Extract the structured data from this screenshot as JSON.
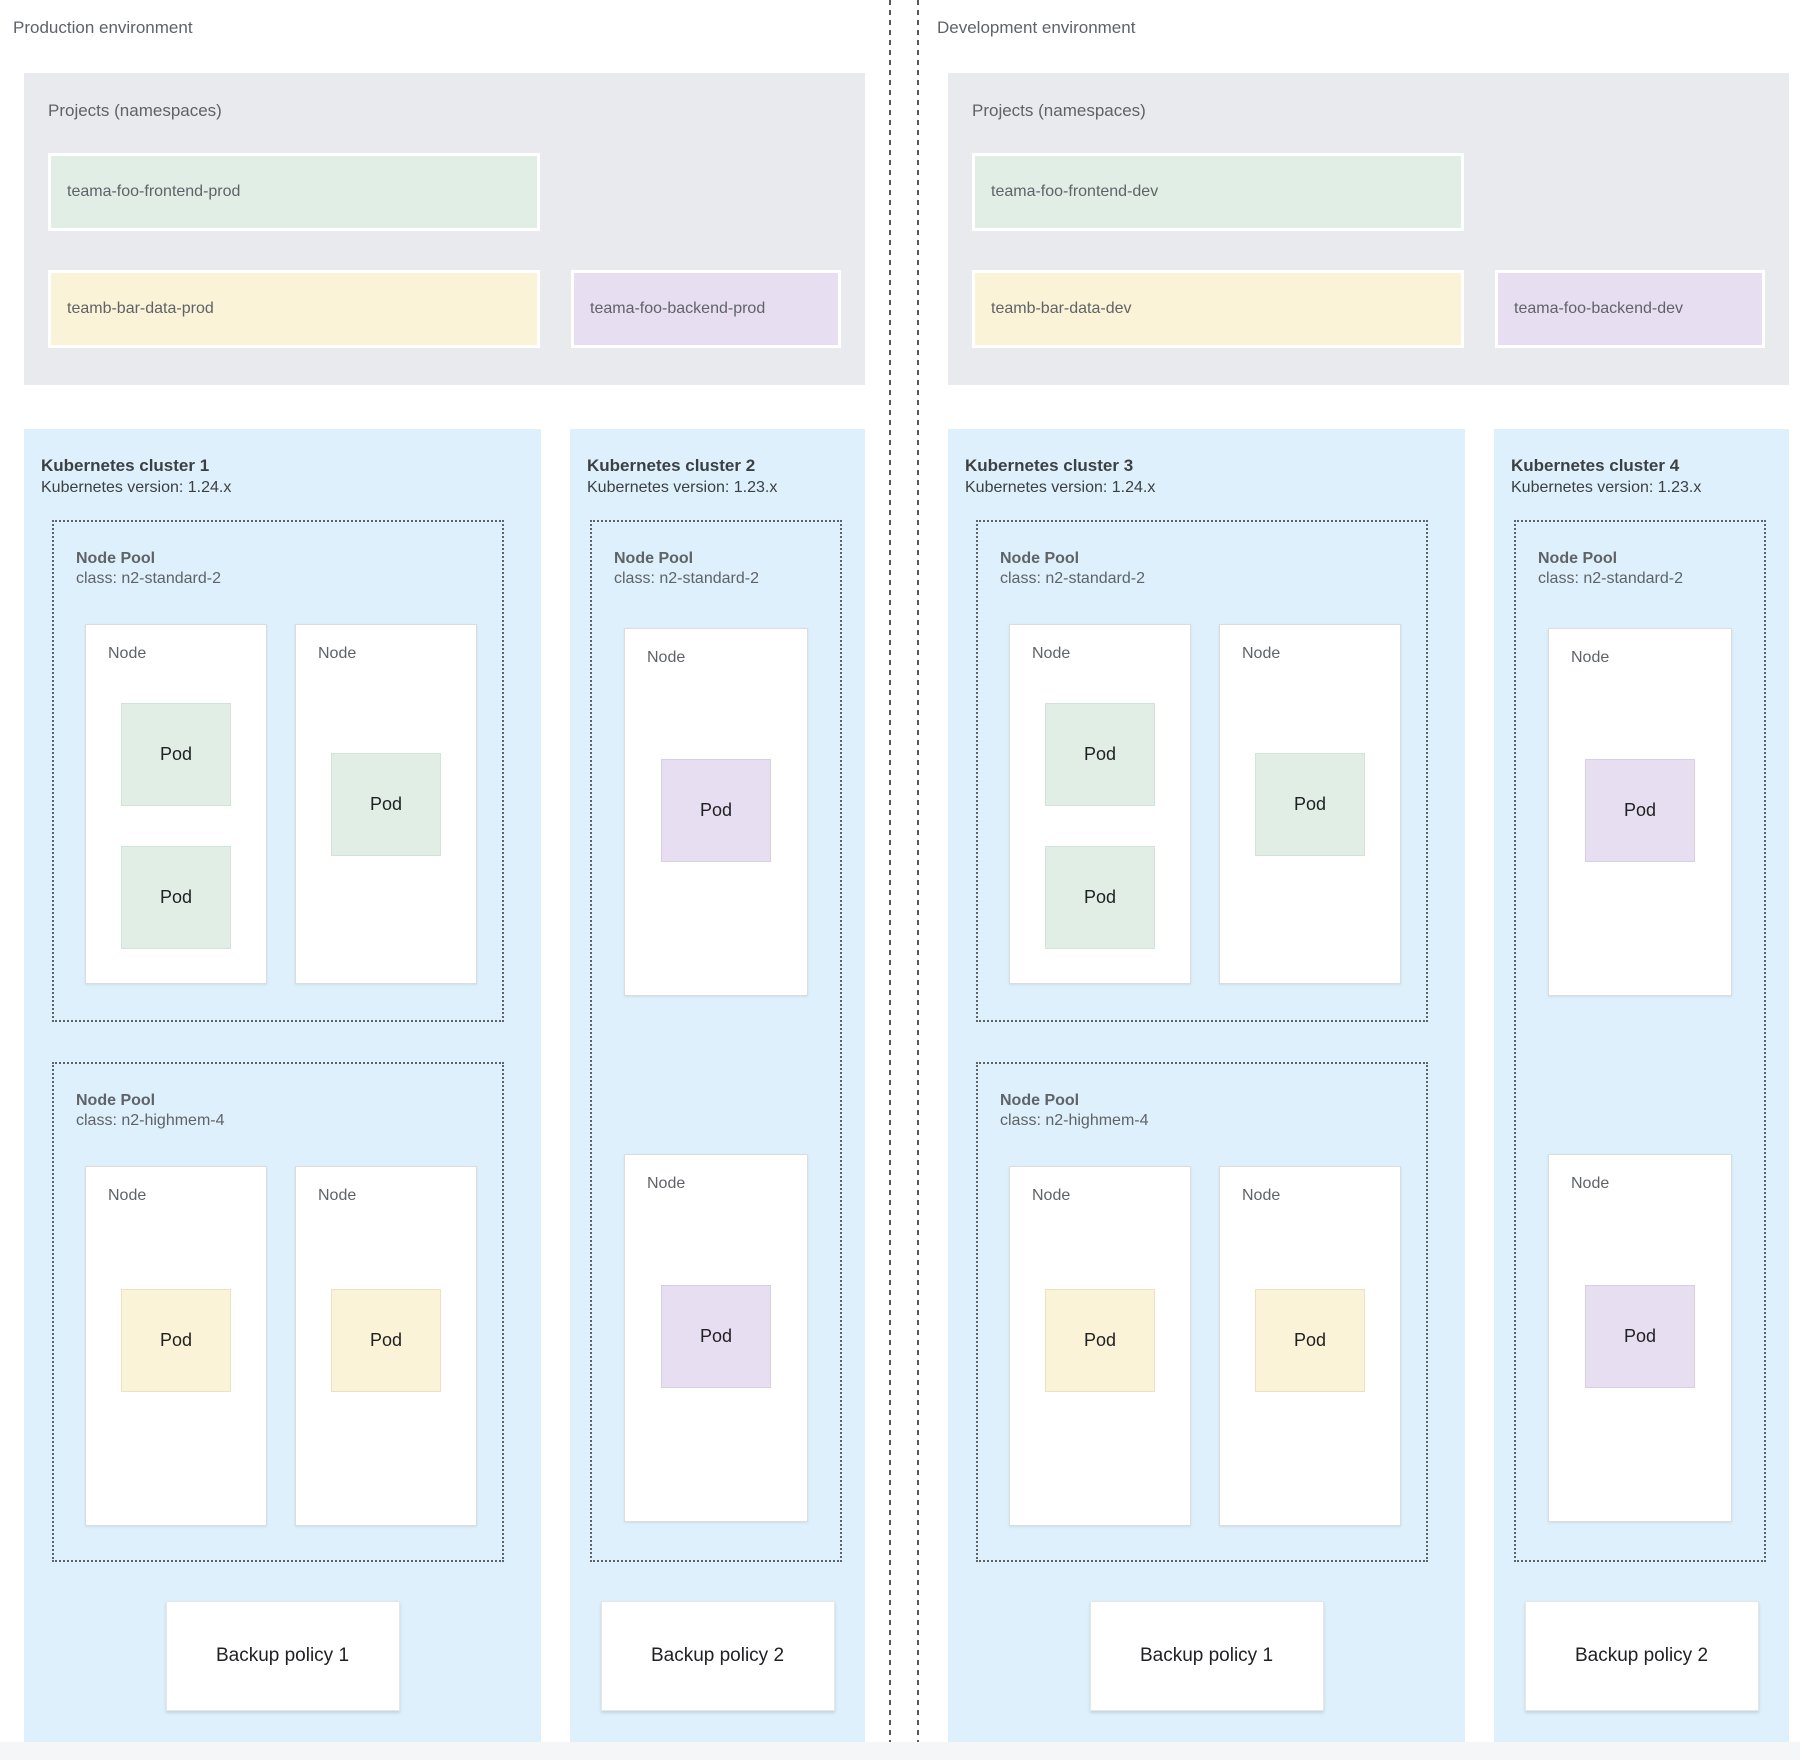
{
  "colors": {
    "cluster_background": "#def0fb",
    "projects_background": "#e8eaed",
    "namespace_green": "#e1eee6",
    "namespace_yellow": "#fbf3d7",
    "namespace_purple": "#e8def1"
  },
  "production": {
    "environment_label": "Production environment",
    "projects": {
      "title": "Projects (namespaces)",
      "namespaces": [
        {
          "name": "teama-foo-frontend-prod",
          "color": "green"
        },
        {
          "name": "teamb-bar-data-prod",
          "color": "yellow"
        },
        {
          "name": "teama-foo-backend-prod",
          "color": "purple"
        }
      ]
    },
    "clusters": [
      {
        "title": "Kubernetes cluster 1",
        "version_label": "Kubernetes version: 1.24.x",
        "pools": [
          {
            "title": "Node Pool",
            "class_label": "class: n2-standard-2",
            "nodes": [
              {
                "label": "Node",
                "pods": [
                  {
                    "label": "Pod",
                    "color": "green"
                  },
                  {
                    "label": "Pod",
                    "color": "green"
                  }
                ]
              },
              {
                "label": "Node",
                "pods": [
                  {
                    "label": "Pod",
                    "color": "green"
                  }
                ]
              }
            ]
          },
          {
            "title": "Node Pool",
            "class_label": "class: n2-highmem-4",
            "nodes": [
              {
                "label": "Node",
                "pods": [
                  {
                    "label": "Pod",
                    "color": "yellow"
                  }
                ]
              },
              {
                "label": "Node",
                "pods": [
                  {
                    "label": "Pod",
                    "color": "yellow"
                  }
                ]
              }
            ]
          }
        ],
        "backup_label": "Backup policy 1"
      },
      {
        "title": "Kubernetes cluster 2",
        "version_label": "Kubernetes version: 1.23.x",
        "pools": [
          {
            "title": "Node Pool",
            "class_label": "class: n2-standard-2",
            "nodes": [
              {
                "label": "Node",
                "pods": [
                  {
                    "label": "Pod",
                    "color": "purple"
                  }
                ]
              },
              {
                "label": "Node",
                "pods": [
                  {
                    "label": "Pod",
                    "color": "purple"
                  }
                ]
              }
            ]
          }
        ],
        "backup_label": "Backup policy 2"
      }
    ]
  },
  "development": {
    "environment_label": "Development environment",
    "projects": {
      "title": "Projects (namespaces)",
      "namespaces": [
        {
          "name": "teama-foo-frontend-dev",
          "color": "green"
        },
        {
          "name": "teamb-bar-data-dev",
          "color": "yellow"
        },
        {
          "name": "teama-foo-backend-dev",
          "color": "purple"
        }
      ]
    },
    "clusters": [
      {
        "title": "Kubernetes cluster 3",
        "version_label": "Kubernetes version: 1.24.x",
        "pools": [
          {
            "title": "Node Pool",
            "class_label": "class: n2-standard-2",
            "nodes": [
              {
                "label": "Node",
                "pods": [
                  {
                    "label": "Pod",
                    "color": "green"
                  },
                  {
                    "label": "Pod",
                    "color": "green"
                  }
                ]
              },
              {
                "label": "Node",
                "pods": [
                  {
                    "label": "Pod",
                    "color": "green"
                  }
                ]
              }
            ]
          },
          {
            "title": "Node Pool",
            "class_label": "class: n2-highmem-4",
            "nodes": [
              {
                "label": "Node",
                "pods": [
                  {
                    "label": "Pod",
                    "color": "yellow"
                  }
                ]
              },
              {
                "label": "Node",
                "pods": [
                  {
                    "label": "Pod",
                    "color": "yellow"
                  }
                ]
              }
            ]
          }
        ],
        "backup_label": "Backup policy 1"
      },
      {
        "title": "Kubernetes cluster 4",
        "version_label": "Kubernetes version: 1.23.x",
        "pools": [
          {
            "title": "Node Pool",
            "class_label": "class: n2-standard-2",
            "nodes": [
              {
                "label": "Node",
                "pods": [
                  {
                    "label": "Pod",
                    "color": "purple"
                  }
                ]
              },
              {
                "label": "Node",
                "pods": [
                  {
                    "label": "Pod",
                    "color": "purple"
                  }
                ]
              }
            ]
          }
        ],
        "backup_label": "Backup policy 2"
      }
    ]
  }
}
